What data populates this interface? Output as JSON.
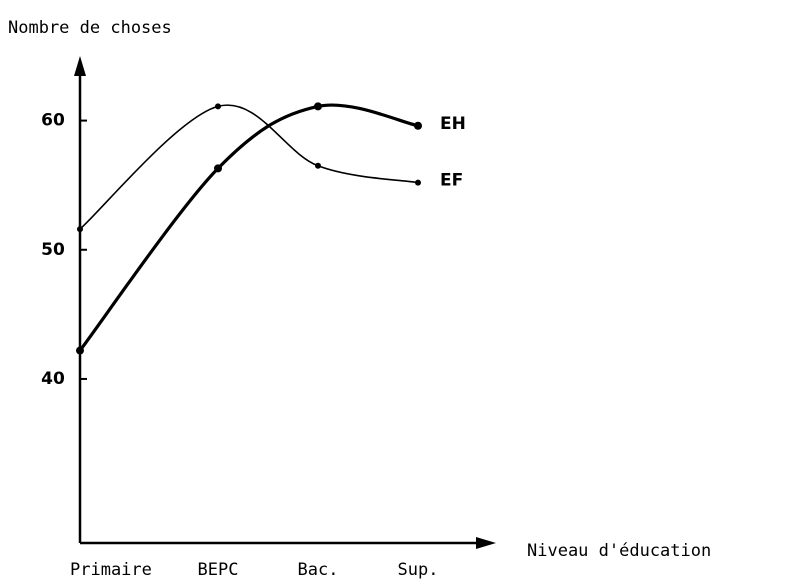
{
  "chart_data": {
    "type": "line",
    "title": "Nombre de choses",
    "x_label": "Niveau d'éducation",
    "categories": [
      "Primaire",
      "BEPC",
      "Bac.",
      "Sup."
    ],
    "series": [
      {
        "name": "EH",
        "color": "#000000",
        "values": [
          42.2,
          56.3,
          61.1,
          59.6
        ]
      },
      {
        "name": "EF",
        "color": "#000000",
        "values": [
          51.6,
          61.1,
          56.5,
          55.2
        ]
      }
    ],
    "ylim": [
      27.3,
      65
    ],
    "yticks": [
      40,
      50,
      60
    ],
    "grid": false
  }
}
